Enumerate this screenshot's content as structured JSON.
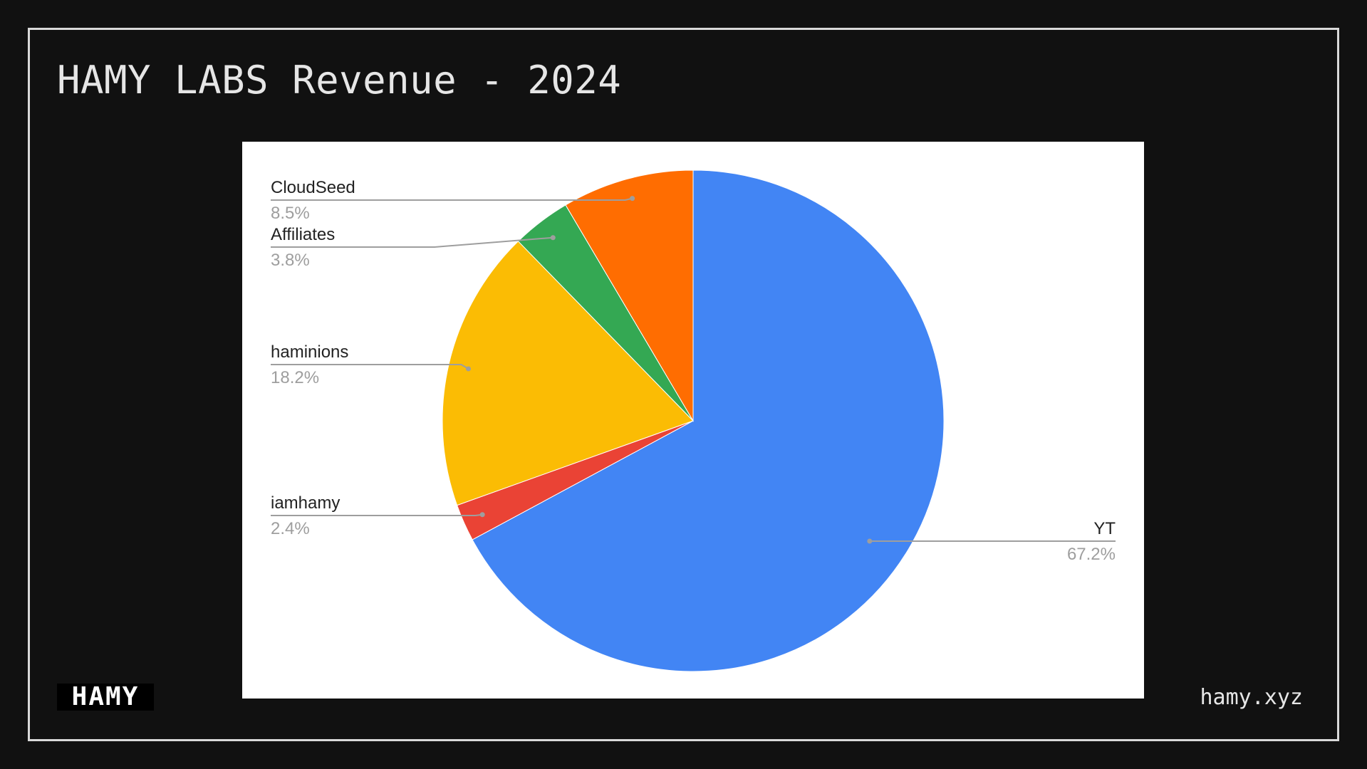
{
  "slide": {
    "title": "HAMY LABS Revenue - 2024",
    "logo_text": "HAMY",
    "url": "hamy.xyz"
  },
  "colors": {
    "background": "#111111",
    "frame": "#d9d9d9",
    "text": "#e6e6e6"
  },
  "chart_data": {
    "type": "pie",
    "title": "",
    "start_angle_deg": 0,
    "direction": "clockwise",
    "legend": "labeled slices",
    "slices": [
      {
        "label": "YT",
        "percent_label": "67.2%",
        "value": 67.2,
        "color": "#4285f4"
      },
      {
        "label": "iamhamy",
        "percent_label": "2.4%",
        "value": 2.4,
        "color": "#ea4335"
      },
      {
        "label": "haminions",
        "percent_label": "18.2%",
        "value": 18.2,
        "color": "#fbbc04"
      },
      {
        "label": "Affiliates",
        "percent_label": "3.8%",
        "value": 3.8,
        "color": "#34a853"
      },
      {
        "label": "CloudSeed",
        "percent_label": "8.5%",
        "value": 8.5,
        "color": "#ff6d01"
      }
    ]
  }
}
